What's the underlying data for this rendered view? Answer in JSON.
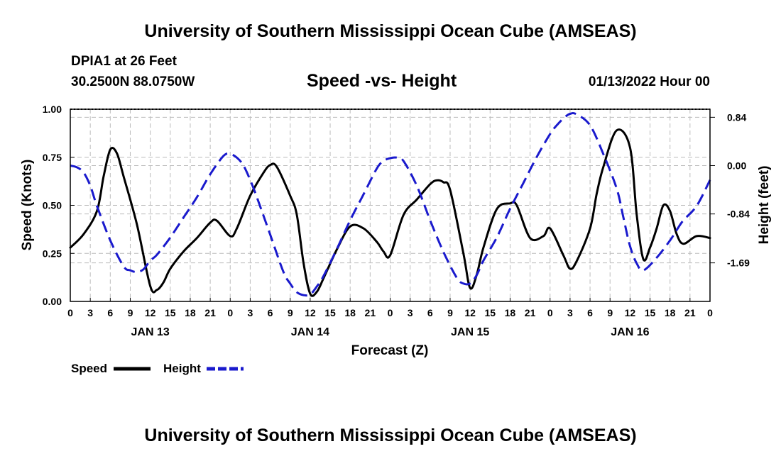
{
  "header": {
    "title": "University of Southern Mississippi Ocean Cube (AMSEAS)",
    "station_line": "DPIA1 at 26 Feet",
    "coords_line": "30.2500N  88.0750W",
    "timestamp": "01/13/2022 Hour 00"
  },
  "footer": {
    "title": "University of Southern Mississippi Ocean Cube (AMSEAS)"
  },
  "chart_data": {
    "type": "line",
    "title": "Speed -vs- Height",
    "xlabel": "Forecast (Z)",
    "ylabel": "Speed (Knots)",
    "y2label": "Height (feet)",
    "x_unit": "forecast hour",
    "xlim": [
      0,
      96
    ],
    "ylim": [
      0,
      1
    ],
    "y2lim": [
      -2.36,
      0.98
    ],
    "x_tick_step": 3,
    "x_tick_labels": [
      "0",
      "3",
      "6",
      "9",
      "12",
      "15",
      "18",
      "21",
      "0",
      "3",
      "6",
      "9",
      "12",
      "15",
      "18",
      "21",
      "0",
      "3",
      "6",
      "9",
      "12",
      "15",
      "18",
      "21",
      "0",
      "3",
      "6",
      "9",
      "12",
      "15",
      "18",
      "21",
      "0"
    ],
    "date_labels": [
      {
        "label": "JAN 13",
        "x": 12
      },
      {
        "label": "JAN 14",
        "x": 36
      },
      {
        "label": "JAN 15",
        "x": 60
      },
      {
        "label": "JAN 16",
        "x": 84
      }
    ],
    "y_ticks": [
      0,
      0.25,
      0.5,
      0.75,
      1.0
    ],
    "y_tick_labels": [
      "0.00",
      "0.25",
      "0.50",
      "0.75",
      "1.00"
    ],
    "y2_ticks": [
      0.84,
      0.0,
      -0.84,
      -1.69
    ],
    "y2_tick_labels": [
      "0.84",
      "0.00",
      "-0.84",
      "-1.69"
    ],
    "legend": [
      {
        "label": "Speed",
        "color": "#000000",
        "style": "solid"
      },
      {
        "label": "Height",
        "color": "#1a1acd",
        "style": "dashed"
      }
    ],
    "series": [
      {
        "name": "Speed",
        "axis": "left",
        "color": "#000000",
        "x": [
          0,
          2,
          4,
          5,
          6,
          7,
          8,
          10,
          12,
          13,
          14,
          15,
          17,
          19,
          21,
          22,
          24,
          25,
          27,
          29,
          30,
          31,
          33,
          34,
          35,
          36,
          37,
          38,
          40,
          42,
          44,
          46,
          47,
          48,
          50,
          52,
          54,
          55,
          56,
          57,
          59,
          60,
          61,
          62,
          64,
          66,
          67,
          69,
          71,
          72,
          74,
          75,
          76,
          78,
          79,
          80,
          82,
          84,
          85,
          86,
          87,
          88,
          89,
          90,
          91,
          92,
          94,
          96
        ],
        "values": [
          0.28,
          0.35,
          0.47,
          0.65,
          0.79,
          0.77,
          0.65,
          0.4,
          0.08,
          0.06,
          0.1,
          0.17,
          0.26,
          0.33,
          0.41,
          0.42,
          0.34,
          0.38,
          0.55,
          0.67,
          0.71,
          0.7,
          0.55,
          0.45,
          0.2,
          0.04,
          0.05,
          0.12,
          0.27,
          0.39,
          0.38,
          0.31,
          0.26,
          0.24,
          0.45,
          0.53,
          0.61,
          0.63,
          0.62,
          0.58,
          0.25,
          0.07,
          0.14,
          0.28,
          0.48,
          0.51,
          0.5,
          0.33,
          0.34,
          0.38,
          0.24,
          0.17,
          0.21,
          0.38,
          0.56,
          0.7,
          0.89,
          0.8,
          0.45,
          0.22,
          0.28,
          0.38,
          0.5,
          0.47,
          0.35,
          0.3,
          0.34,
          0.33
        ]
      },
      {
        "name": "Height",
        "axis": "right",
        "color": "#1a1acd",
        "x": [
          0,
          1,
          2,
          3,
          4,
          6,
          8,
          9,
          10,
          11,
          12,
          13,
          15,
          17,
          19,
          21,
          23,
          24,
          25,
          26,
          27,
          28,
          30,
          32,
          33,
          34,
          35,
          36,
          37,
          38,
          40,
          42,
          44,
          46,
          47,
          48,
          49,
          50,
          52,
          54,
          56,
          58,
          59,
          60,
          61,
          62,
          64,
          66,
          68,
          70,
          72,
          73,
          74,
          75,
          76,
          78,
          80,
          82,
          83,
          84,
          85,
          86,
          88,
          90,
          91,
          92,
          94,
          96
        ],
        "values": [
          0.0,
          -0.03,
          -0.12,
          -0.35,
          -0.7,
          -1.3,
          -1.75,
          -1.82,
          -1.85,
          -1.8,
          -1.65,
          -1.55,
          -1.25,
          -0.9,
          -0.55,
          -0.15,
          0.17,
          0.2,
          0.14,
          0.0,
          -0.25,
          -0.55,
          -1.2,
          -1.85,
          -2.05,
          -2.2,
          -2.25,
          -2.24,
          -2.1,
          -1.92,
          -1.45,
          -0.95,
          -0.5,
          -0.05,
          0.08,
          0.13,
          0.14,
          0.08,
          -0.35,
          -0.95,
          -1.5,
          -1.95,
          -2.05,
          -2.05,
          -1.9,
          -1.65,
          -1.25,
          -0.75,
          -0.3,
          0.15,
          0.55,
          0.7,
          0.82,
          0.9,
          0.89,
          0.7,
          0.2,
          -0.4,
          -0.9,
          -1.4,
          -1.7,
          -1.82,
          -1.6,
          -1.3,
          -1.12,
          -0.95,
          -0.7,
          -0.25
        ]
      }
    ]
  }
}
